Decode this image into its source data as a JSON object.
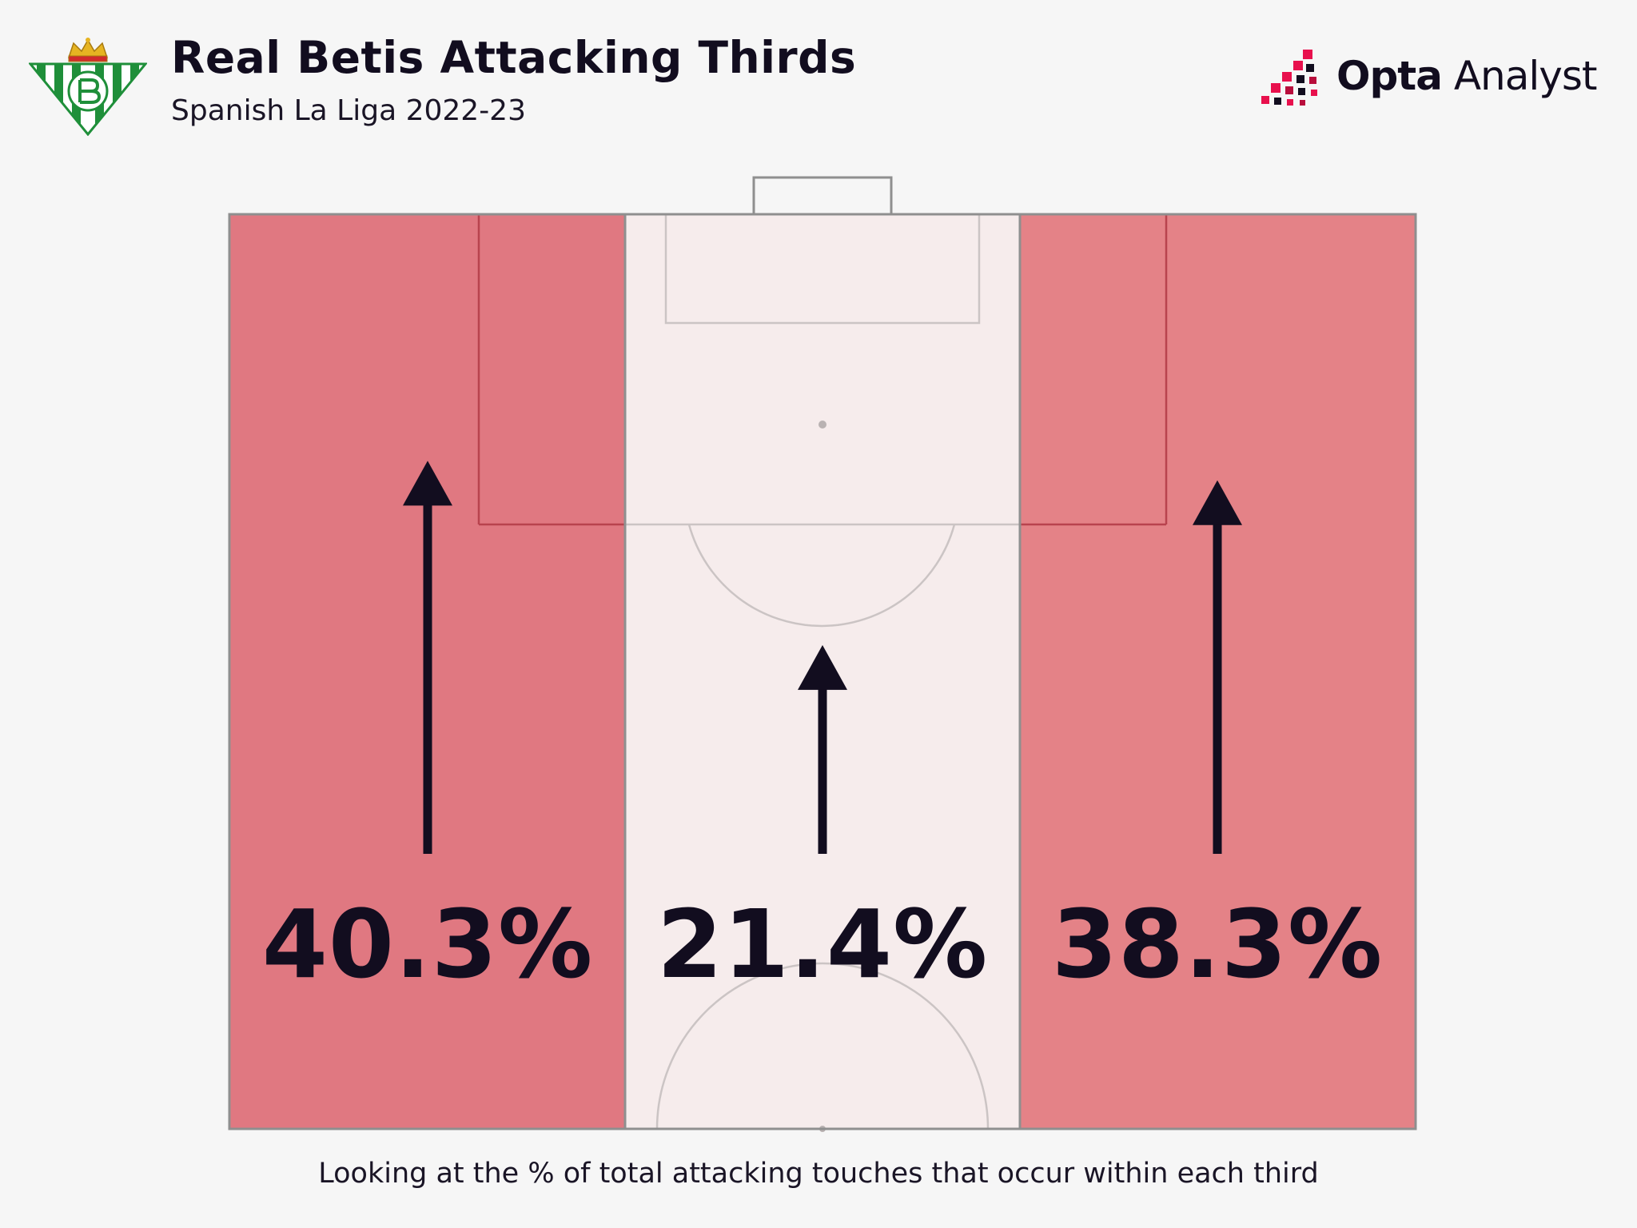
{
  "header": {
    "title": "Real Betis Attacking Thirds",
    "subtitle": "Spanish La Liga 2022-23"
  },
  "brand": {
    "name_bold": "Opta",
    "name_regular": " Analyst",
    "colors": {
      "dark": "#120d1f",
      "accent": "#e8104d"
    }
  },
  "crest": {
    "icon": "real-betis-crest-icon",
    "colors": {
      "green": "#1f8f3a",
      "white": "#ffffff",
      "gold": "#e6b422",
      "red": "#d12b2b"
    }
  },
  "chart_data": {
    "type": "bar",
    "categories": [
      "",
      "",
      ""
    ],
    "values": [
      40.3,
      21.4,
      38.3
    ],
    "labels": [
      "40.3%",
      "21.4%",
      "38.3%"
    ],
    "unit": "%",
    "direction": "up",
    "colors": {
      "left": "#e07881",
      "center": "#f6ecec",
      "right": "#e48287",
      "arrow": "#120d1f"
    }
  },
  "caption": "Looking at the % of total attacking touches that occur within each third"
}
